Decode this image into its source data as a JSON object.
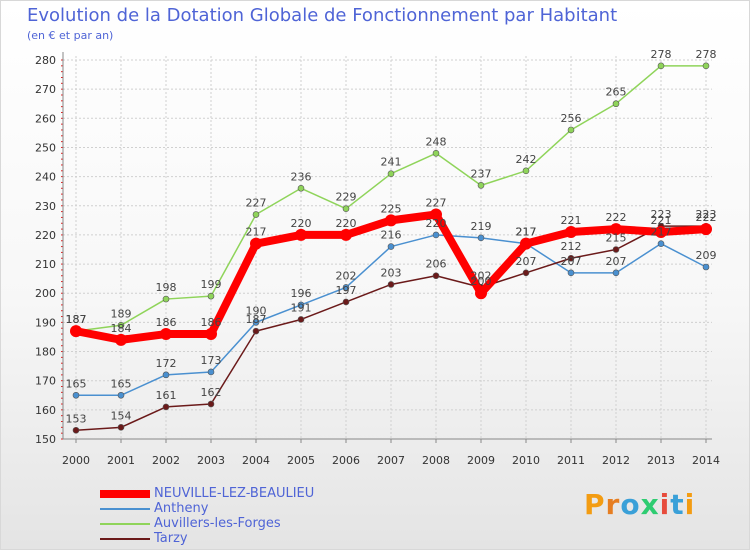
{
  "chart_data": {
    "type": "line",
    "title": "Evolution de la Dotation Globale de Fonctionnement par Habitant",
    "subtitle": "(en € et par an)",
    "xlabel": "",
    "ylabel": "",
    "ylim": [
      150,
      280
    ],
    "yticks": [
      150,
      160,
      170,
      180,
      190,
      200,
      210,
      220,
      230,
      240,
      250,
      260,
      270,
      280
    ],
    "categories": [
      "2000",
      "2001",
      "2002",
      "2003",
      "2004",
      "2005",
      "2006",
      "2007",
      "2008",
      "2009",
      "2010",
      "2011",
      "2012",
      "2013",
      "2014"
    ],
    "grid": true,
    "legend_position": "bottom-left",
    "series": [
      {
        "name": "NEUVILLE-LEZ-BEAULIEU",
        "color": "#ff0000",
        "values": [
          187,
          184,
          186,
          186,
          217,
          220,
          220,
          225,
          227,
          200,
          217,
          221,
          222,
          221,
          222
        ]
      },
      {
        "name": "Antheny",
        "color": "#4a90d0",
        "values": [
          165,
          165,
          172,
          173,
          190,
          196,
          202,
          216,
          220,
          219,
          217,
          207,
          207,
          217,
          209
        ]
      },
      {
        "name": "Auvillers-les-Forges",
        "color": "#8fd45a",
        "values": [
          187,
          189,
          198,
          199,
          227,
          236,
          229,
          241,
          248,
          237,
          242,
          256,
          265,
          278,
          278
        ]
      },
      {
        "name": "Tarzy",
        "color": "#6b1a1a",
        "values": [
          153,
          154,
          161,
          162,
          187,
          191,
          197,
          203,
          206,
          202,
          207,
          212,
          215,
          223,
          223
        ]
      }
    ]
  },
  "logo": {
    "text": "Proxiti"
  }
}
